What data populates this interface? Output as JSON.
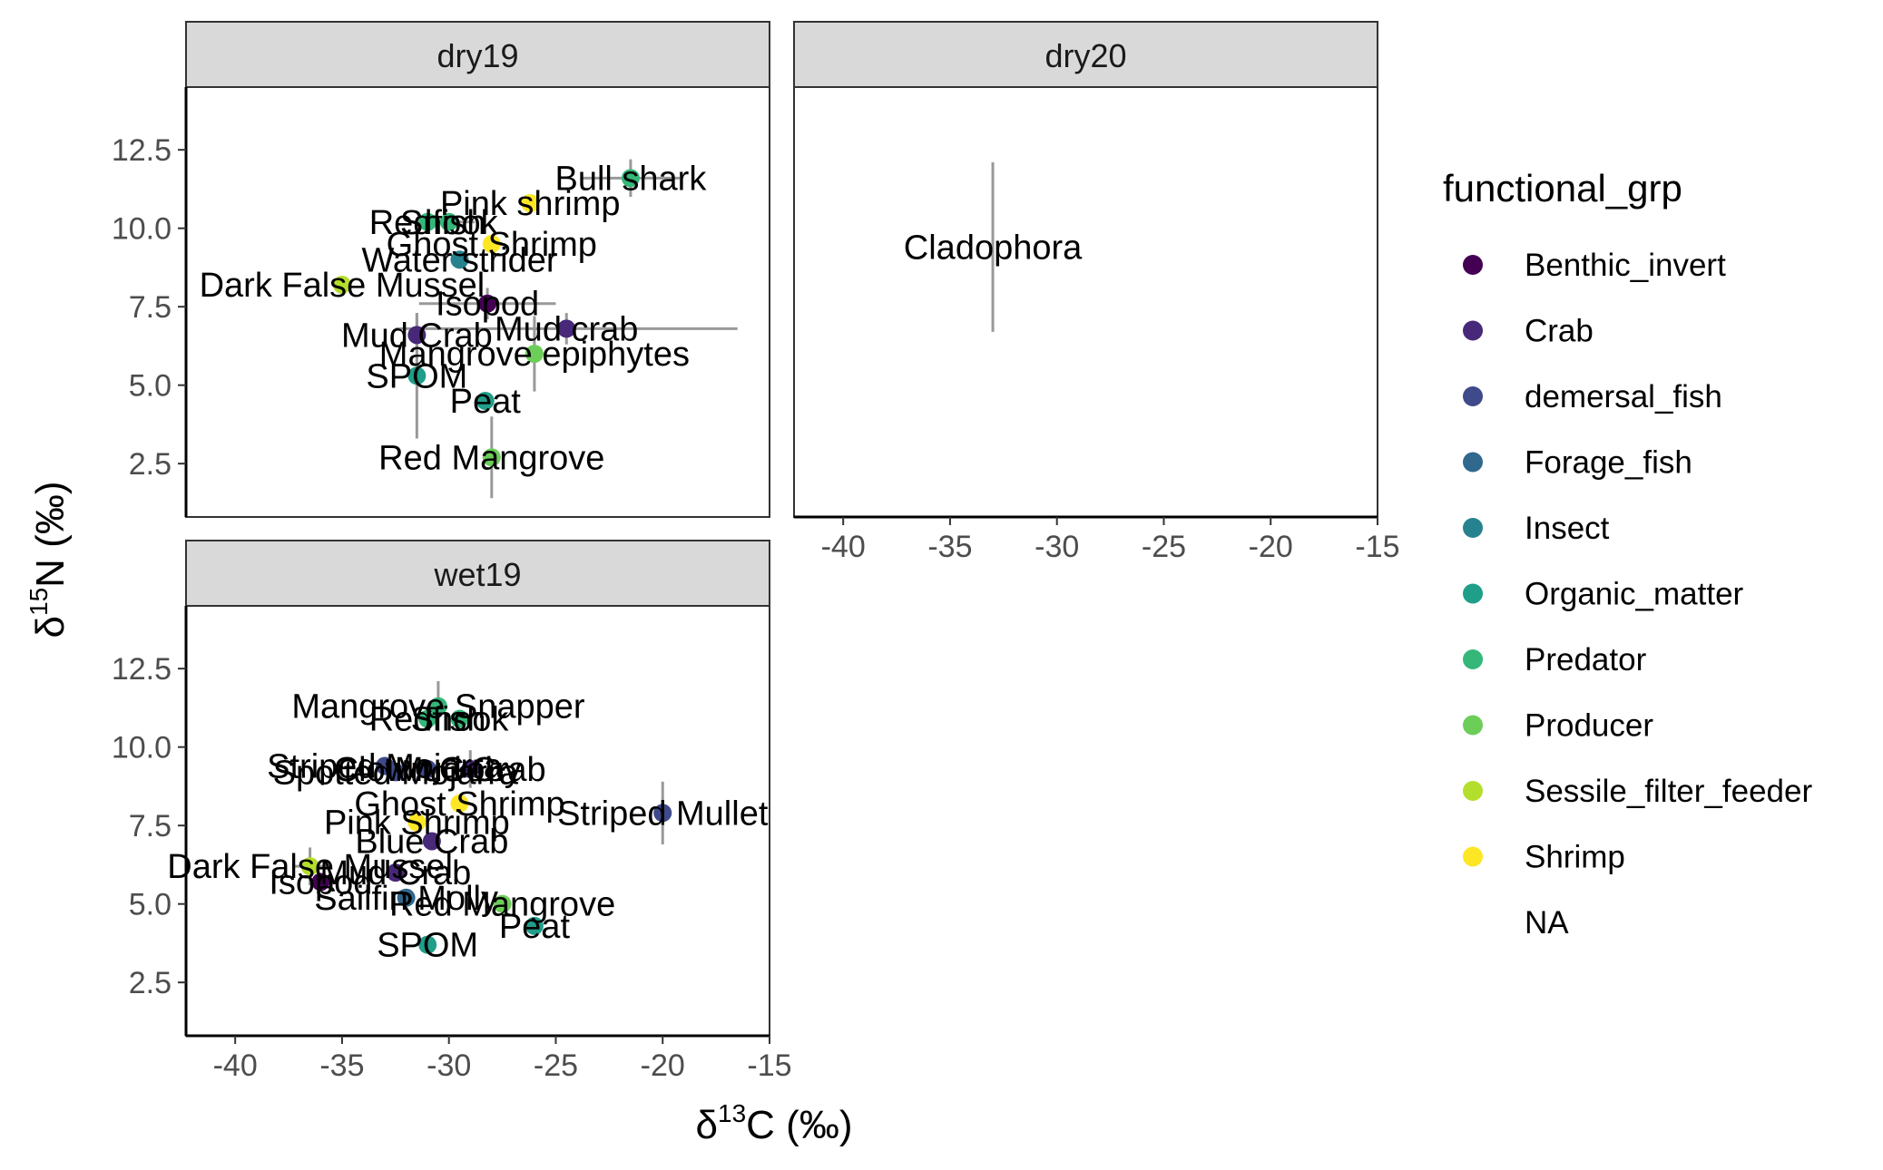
{
  "chart_data": {
    "type": "scatter",
    "faceted": true,
    "xlabel_prefix": "δ",
    "xlabel_sup": "13",
    "xlabel_suffix": "C (‰)",
    "ylabel_prefix": "δ",
    "ylabel_sup": "15",
    "ylabel_suffix": "N (‰)",
    "xlim": [
      -42.3,
      -15
    ],
    "ylim": [
      0.8,
      14.5
    ],
    "x_ticks": [
      -40,
      -35,
      -30,
      -25,
      -20,
      -15
    ],
    "y_ticks": [
      2.5,
      5.0,
      7.5,
      10.0,
      12.5
    ],
    "x_tick_labels": [
      "-40",
      "-35",
      "-30",
      "-25",
      "-20",
      "-15"
    ],
    "y_tick_labels": [
      "2.5",
      "5.0",
      "7.5",
      "10.0",
      "12.5"
    ],
    "grid": false,
    "legend": {
      "title": "functional_grp",
      "position": "right",
      "items": [
        {
          "label": "Benthic_invert",
          "color": "#440154"
        },
        {
          "label": "Crab",
          "color": "#482878"
        },
        {
          "label": "demersal_fish",
          "color": "#3E4A89"
        },
        {
          "label": "Forage_fish",
          "color": "#31688E"
        },
        {
          "label": "Insect",
          "color": "#26828E"
        },
        {
          "label": "Organic_matter",
          "color": "#1F9E89"
        },
        {
          "label": "Predator",
          "color": "#35B779"
        },
        {
          "label": "Producer",
          "color": "#6DCD59"
        },
        {
          "label": "Sessile_filter_feeder",
          "color": "#B4DE2C"
        },
        {
          "label": "Shrimp",
          "color": "#FDE725"
        },
        {
          "label": "NA",
          "color": null
        }
      ]
    },
    "panels": [
      {
        "title": "dry19",
        "points": [
          {
            "label": "Bull shark",
            "group": "Predator",
            "x": -21.5,
            "y": 11.6,
            "x_err": 2.3,
            "y_err": 0.6
          },
          {
            "label": "Pink shrimp",
            "group": "Shrimp",
            "x": -26.2,
            "y": 10.8,
            "x_err": 0,
            "y_err": 0
          },
          {
            "label": "Snook",
            "group": "Predator",
            "x": -30.0,
            "y": 10.2,
            "x_err": 1.2,
            "y_err": 0
          },
          {
            "label": "Redfish",
            "group": "Predator",
            "x": -31.0,
            "y": 10.2,
            "x_err": 0,
            "y_err": 0
          },
          {
            "label": "Ghost Shrimp",
            "group": "Shrimp",
            "x": -28.0,
            "y": 9.5,
            "x_err": 0,
            "y_err": 0
          },
          {
            "label": "Water strider",
            "group": "Insect",
            "x": -29.5,
            "y": 9.0,
            "x_err": 0,
            "y_err": 0
          },
          {
            "label": "Dark False Mussel",
            "group": "Sessile_filter_feeder",
            "x": -35.0,
            "y": 8.2,
            "x_err": 0,
            "y_err": 0
          },
          {
            "label": "Isopod",
            "group": "Benthic_invert",
            "x": -28.2,
            "y": 7.6,
            "x_err": 3.2,
            "y_err": 0.5
          },
          {
            "label": "Mud crab",
            "group": "Crab",
            "x": -24.5,
            "y": 6.8,
            "x_err": 8.0,
            "y_err": 0.5
          },
          {
            "label": "Mud Crab",
            "group": "Crab",
            "x": -31.5,
            "y": 6.6,
            "x_err": 0,
            "y_err": 0.7
          },
          {
            "label": "Mangrove epiphytes",
            "group": "Producer",
            "x": -26.0,
            "y": 6.0,
            "x_err": 0,
            "y_err": 1.2
          },
          {
            "label": "SPOM",
            "group": "Organic_matter",
            "x": -31.5,
            "y": 5.3,
            "x_err": 0,
            "y_err": 2.0
          },
          {
            "label": "Peat",
            "group": "Organic_matter",
            "x": -28.3,
            "y": 4.5,
            "x_err": 0,
            "y_err": 0
          },
          {
            "label": "Red Mangrove",
            "group": "Producer",
            "x": -28.0,
            "y": 2.7,
            "x_err": 0,
            "y_err": 1.3
          }
        ]
      },
      {
        "title": "dry20",
        "points": [
          {
            "label": "Cladophora",
            "group": "NA",
            "x": -33.0,
            "y": 9.4,
            "x_err": 0,
            "y_err": 2.7
          }
        ]
      },
      {
        "title": "wet19",
        "points": [
          {
            "label": "Mangrove Snapper",
            "group": "Predator",
            "x": -30.5,
            "y": 11.3,
            "x_err": 0,
            "y_err": 0.8
          },
          {
            "label": "Snook",
            "group": "Predator",
            "x": -29.5,
            "y": 10.9,
            "x_err": 0,
            "y_err": 0
          },
          {
            "label": "Redfish",
            "group": "Predator",
            "x": -31.0,
            "y": 10.9,
            "x_err": 0,
            "y_err": 0
          },
          {
            "label": "Striped Mojarra",
            "group": "demersal_fish",
            "x": -33.0,
            "y": 9.4,
            "x_err": 0,
            "y_err": 0
          },
          {
            "label": "Clown Goby",
            "group": "demersal_fish",
            "x": -31.0,
            "y": 9.3,
            "x_err": 0,
            "y_err": 0
          },
          {
            "label": "Mud Crab",
            "group": "Crab",
            "x": -29.0,
            "y": 9.3,
            "x_err": 0,
            "y_err": 0.6
          },
          {
            "label": "Spotted Mojarra",
            "group": "demersal_fish",
            "x": -32.5,
            "y": 9.2,
            "x_err": 0,
            "y_err": 0
          },
          {
            "label": "Ghost Shrimp",
            "group": "Shrimp",
            "x": -29.5,
            "y": 8.2,
            "x_err": 0,
            "y_err": 0
          },
          {
            "label": "Striped Mullet",
            "group": "demersal_fish",
            "x": -20.0,
            "y": 7.9,
            "x_err": 0,
            "y_err": 1.0
          },
          {
            "label": "Pink Shrimp",
            "group": "Shrimp",
            "x": -31.5,
            "y": 7.6,
            "x_err": 0,
            "y_err": 0
          },
          {
            "label": "Blue Crab",
            "group": "Crab",
            "x": -30.8,
            "y": 7.0,
            "x_err": 0,
            "y_err": 0
          },
          {
            "label": "Dark False Mussel",
            "group": "Sessile_filter_feeder",
            "x": -36.5,
            "y": 6.2,
            "x_err": 0.8,
            "y_err": 0.6
          },
          {
            "label": "Mud Crab",
            "group": "Crab",
            "x": -32.5,
            "y": 6.0,
            "x_err": 0,
            "y_err": 0
          },
          {
            "label": "Isopod",
            "group": "Benthic_invert",
            "x": -36.0,
            "y": 5.7,
            "x_err": 0,
            "y_err": 0
          },
          {
            "label": "Sailfin Molly",
            "group": "Forage_fish",
            "x": -32.0,
            "y": 5.2,
            "x_err": 0,
            "y_err": 0
          },
          {
            "label": "Red Mangrove",
            "group": "Producer",
            "x": -27.5,
            "y": 5.0,
            "x_err": 0,
            "y_err": 0
          },
          {
            "label": "Peat",
            "group": "Organic_matter",
            "x": -26.0,
            "y": 4.3,
            "x_err": 0,
            "y_err": 0
          },
          {
            "label": "SPOM",
            "group": "Organic_matter",
            "x": -31.0,
            "y": 3.7,
            "x_err": 0,
            "y_err": 0
          }
        ]
      }
    ]
  }
}
